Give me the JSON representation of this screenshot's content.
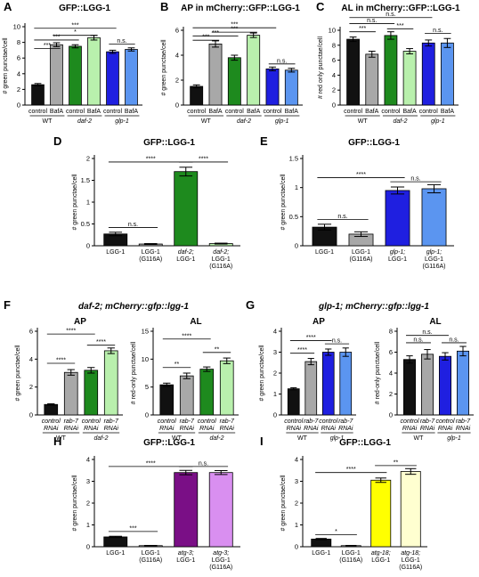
{
  "colors": {
    "black": "#111111",
    "grey": "#a8a8a8",
    "dkgreen": "#1e8a1e",
    "ltgreen": "#b9f0ad",
    "blue": "#1f1fe0",
    "ltblue": "#5b95f0",
    "purple": "#7a0f86",
    "violet": "#d98ff0",
    "yellow": "#ffff00",
    "cream": "#ffffd0"
  },
  "chart_data": [
    {
      "panel": "A",
      "type": "bar",
      "title": "GFP::LGG-1",
      "ylabel": "# green punctae/cell",
      "ylim": [
        0,
        10
      ],
      "yticks": [
        0,
        2,
        4,
        6,
        8,
        10
      ],
      "categories": [
        "control",
        "BafA",
        "control",
        "BafA",
        "control",
        "BafA"
      ],
      "values": [
        2.6,
        7.7,
        7.5,
        8.6,
        6.8,
        7.1
      ],
      "errors": [
        0.15,
        0.25,
        0.2,
        0.3,
        0.2,
        0.2
      ],
      "colors": [
        "black",
        "grey",
        "dkgreen",
        "ltgreen",
        "blue",
        "ltblue"
      ],
      "groups": [
        {
          "label": "WT",
          "italic": false,
          "from": 0,
          "to": 1
        },
        {
          "label": "daf-2",
          "italic": true,
          "from": 2,
          "to": 3
        },
        {
          "label": "glp-1",
          "italic": true,
          "from": 4,
          "to": 5
        }
      ],
      "significance": [
        {
          "from": 0,
          "to": 4,
          "label": "***",
          "y": 9.8
        },
        {
          "from": 1,
          "to": 3,
          "label": "*",
          "y": 8.9
        },
        {
          "from": 0,
          "to": 2,
          "label": "***",
          "y": 8.3
        },
        {
          "from": 0,
          "to": 1,
          "label": "***",
          "y": 7.2
        },
        {
          "from": 4,
          "to": 5,
          "label": "n.s.",
          "y": 7.8
        }
      ]
    },
    {
      "panel": "B",
      "type": "bar",
      "title": "AP in mCherry::GFP::LGG-1",
      "ylabel": "# green punctae/cell",
      "ylim": [
        0,
        6
      ],
      "yticks": [
        0,
        2,
        4,
        6
      ],
      "categories": [
        "control",
        "BafA",
        "control",
        "BafA",
        "control",
        "BafA"
      ],
      "values": [
        1.5,
        4.9,
        3.8,
        5.6,
        2.9,
        2.8
      ],
      "errors": [
        0.12,
        0.25,
        0.2,
        0.18,
        0.15,
        0.15
      ],
      "colors": [
        "black",
        "grey",
        "dkgreen",
        "ltgreen",
        "blue",
        "ltblue"
      ],
      "groups": [
        {
          "label": "WT",
          "italic": false,
          "from": 0,
          "to": 1
        },
        {
          "label": "daf-2",
          "italic": true,
          "from": 2,
          "to": 3
        },
        {
          "label": "glp-1",
          "italic": true,
          "from": 4,
          "to": 5
        }
      ],
      "significance": [
        {
          "from": 0,
          "to": 4,
          "label": "***",
          "y": 6.2
        },
        {
          "from": 0,
          "to": 2,
          "label": "***",
          "y": 5.55
        },
        {
          "from": 1,
          "to": 3,
          "label": "***",
          "y": 5.85
        },
        {
          "from": 0,
          "to": 1,
          "label": "***",
          "y": 5.2
        },
        {
          "from": 4,
          "to": 5,
          "label": "n.s.",
          "y": 3.3
        }
      ]
    },
    {
      "panel": "C",
      "type": "bar",
      "title": "AL in mCherry::GFP::LGG-1",
      "ylabel": "# red only punctae/cell",
      "ylim": [
        0,
        10
      ],
      "yticks": [
        0,
        2,
        4,
        6,
        8,
        10
      ],
      "categories": [
        "control",
        "BafA",
        "control",
        "BafA",
        "control",
        "BafA"
      ],
      "values": [
        8.8,
        6.8,
        9.3,
        7.2,
        8.3,
        8.3
      ],
      "errors": [
        0.3,
        0.4,
        0.5,
        0.35,
        0.4,
        0.6
      ],
      "colors": [
        "black",
        "grey",
        "dkgreen",
        "ltgreen",
        "blue",
        "ltblue"
      ],
      "groups": [
        {
          "label": "WT",
          "italic": false,
          "from": 0,
          "to": 1
        },
        {
          "label": "daf-2",
          "italic": true,
          "from": 2,
          "to": 3
        },
        {
          "label": "glp-1",
          "italic": true,
          "from": 4,
          "to": 5
        }
      ],
      "significance": [
        {
          "from": 0,
          "to": 4,
          "label": "n.s.",
          "y": 11.7
        },
        {
          "from": 0,
          "to": 2,
          "label": "n.s.",
          "y": 10.9
        },
        {
          "from": 0,
          "to": 1,
          "label": "***",
          "y": 9.8
        },
        {
          "from": 2,
          "to": 3,
          "label": "***",
          "y": 10.2
        },
        {
          "from": 4,
          "to": 5,
          "label": "n.s.",
          "y": 9.6
        }
      ]
    },
    {
      "panel": "D",
      "type": "bar",
      "title": "GFP::LGG-1",
      "ylabel": "# green punctae/cell",
      "ylim": [
        0,
        2.0
      ],
      "yticks": [
        0,
        0.5,
        1.0,
        1.5,
        2.0
      ],
      "categories": [
        [
          "LGG-1"
        ],
        [
          "LGG-1",
          "(G116A)"
        ],
        [
          "daf-2;",
          "LGG-1"
        ],
        [
          "daf-2;",
          "LGG-1",
          "(G116A)"
        ]
      ],
      "italic_first": [
        false,
        false,
        true,
        true
      ],
      "values": [
        0.27,
        0.04,
        1.7,
        0.05
      ],
      "errors": [
        0.04,
        0.01,
        0.1,
        0.01
      ],
      "colors": [
        "black",
        "grey",
        "dkgreen",
        "ltgreen"
      ],
      "significance": [
        {
          "from": 0,
          "to": 2,
          "label": "****",
          "y": 1.92
        },
        {
          "from": 2,
          "to": 3,
          "label": "****",
          "y": 1.92
        },
        {
          "from": 0,
          "to": 1,
          "label": "n.s.",
          "y": 0.42
        }
      ]
    },
    {
      "panel": "E",
      "type": "bar",
      "title": "GFP::LGG-1",
      "ylabel": "# green punctae/cell",
      "ylim": [
        0,
        1.5
      ],
      "yticks": [
        0,
        0.5,
        1.0,
        1.5
      ],
      "categories": [
        [
          "LGG-1"
        ],
        [
          "LGG-1",
          "(G116A)"
        ],
        [
          "glp-1;",
          "LGG-1"
        ],
        [
          "glp-1;",
          "LGG-1",
          "(G116A)"
        ]
      ],
      "italic_first": [
        false,
        false,
        true,
        true
      ],
      "values": [
        0.32,
        0.2,
        0.95,
        0.98
      ],
      "errors": [
        0.05,
        0.04,
        0.06,
        0.07
      ],
      "colors": [
        "black",
        "grey",
        "blue",
        "ltblue"
      ],
      "significance": [
        {
          "from": 0,
          "to": 2,
          "label": "****",
          "y": 1.17
        },
        {
          "from": 2,
          "to": 3,
          "label": "n.s.",
          "y": 1.1
        },
        {
          "from": 0,
          "to": 1,
          "label": "n.s.",
          "y": 0.45
        }
      ]
    },
    {
      "panel": "F",
      "type": "bar",
      "title": "AP",
      "ylabel": "# green punctae/cell",
      "ylim": [
        0,
        6
      ],
      "yticks": [
        0,
        2,
        4,
        6
      ],
      "categories": [
        [
          "control",
          "RNAi"
        ],
        [
          "rab-7",
          "RNAi"
        ],
        [
          "control",
          "RNAi"
        ],
        [
          "rab-7",
          "RNAi"
        ]
      ],
      "italic_all": true,
      "values": [
        0.75,
        3.05,
        3.2,
        4.6
      ],
      "errors": [
        0.05,
        0.2,
        0.2,
        0.2
      ],
      "colors": [
        "black",
        "grey",
        "dkgreen",
        "ltgreen"
      ],
      "groups": [
        {
          "label": "WT",
          "italic": false,
          "from": 0,
          "to": 1
        },
        {
          "label": "daf-2",
          "italic": true,
          "from": 2,
          "to": 3
        }
      ],
      "significance": [
        {
          "from": 0,
          "to": 2,
          "label": "****",
          "y": 5.8
        },
        {
          "from": 2,
          "to": 3,
          "label": "****",
          "y": 5.0
        },
        {
          "from": 0,
          "to": 1,
          "label": "****",
          "y": 3.7
        }
      ]
    },
    {
      "panel": "F2",
      "type": "bar",
      "title": "AL",
      "ylabel": "# red-only punctae/cell",
      "ylim": [
        0,
        15
      ],
      "yticks": [
        0,
        5,
        10,
        15
      ],
      "categories": [
        [
          "control",
          "RNAi"
        ],
        [
          "rab-7",
          "RNAi"
        ],
        [
          "control",
          "RNAi"
        ],
        [
          "rab-7",
          "RNAi"
        ]
      ],
      "italic_all": true,
      "values": [
        5.4,
        7.0,
        8.2,
        9.7
      ],
      "errors": [
        0.3,
        0.5,
        0.4,
        0.5
      ],
      "colors": [
        "black",
        "grey",
        "dkgreen",
        "ltgreen"
      ],
      "groups": [
        {
          "label": "WT",
          "italic": false,
          "from": 0,
          "to": 1
        },
        {
          "label": "daf-2",
          "italic": true,
          "from": 2,
          "to": 3
        }
      ],
      "significance": [
        {
          "from": 0,
          "to": 2,
          "label": "****",
          "y": 13.6
        },
        {
          "from": 2,
          "to": 3,
          "label": "**",
          "y": 11.2
        },
        {
          "from": 0,
          "to": 1,
          "label": "**",
          "y": 8.5
        }
      ]
    },
    {
      "panel": "G",
      "type": "bar",
      "title": "AP",
      "ylabel": "# green punctae/cell",
      "ylim": [
        0,
        4
      ],
      "yticks": [
        0,
        1,
        2,
        3,
        4
      ],
      "categories": [
        [
          "control",
          "RNAi"
        ],
        [
          "rab-7",
          "RNAi"
        ],
        [
          "control",
          "RNAi"
        ],
        [
          "rab-7",
          "RNAi"
        ]
      ],
      "italic_all": true,
      "values": [
        1.25,
        2.55,
        3.0,
        3.0
      ],
      "errors": [
        0.05,
        0.15,
        0.15,
        0.2
      ],
      "colors": [
        "black",
        "grey",
        "blue",
        "ltblue"
      ],
      "groups": [
        {
          "label": "WT",
          "italic": false,
          "from": 0,
          "to": 1
        },
        {
          "label": "glp-1",
          "italic": true,
          "from": 2,
          "to": 3
        }
      ],
      "significance": [
        {
          "from": 0,
          "to": 2,
          "label": "****",
          "y": 3.55
        },
        {
          "from": 2,
          "to": 3,
          "label": "n.s.",
          "y": 3.4
        },
        {
          "from": 0,
          "to": 1,
          "label": "****",
          "y": 2.95
        }
      ]
    },
    {
      "panel": "G2",
      "type": "bar",
      "title": "AL",
      "ylabel": "# red-only punctae/cell",
      "ylim": [
        0,
        8
      ],
      "yticks": [
        0,
        2,
        4,
        6,
        8
      ],
      "categories": [
        [
          "control",
          "RNAi"
        ],
        [
          "rab-7",
          "RNAi"
        ],
        [
          "control",
          "RNAi"
        ],
        [
          "rab-7",
          "RNAi"
        ]
      ],
      "italic_all": true,
      "values": [
        5.3,
        5.8,
        5.6,
        6.1
      ],
      "errors": [
        0.35,
        0.45,
        0.35,
        0.45
      ],
      "colors": [
        "black",
        "grey",
        "blue",
        "ltblue"
      ],
      "groups": [
        {
          "label": "WT",
          "italic": false,
          "from": 0,
          "to": 1
        },
        {
          "label": "glp-1",
          "italic": true,
          "from": 2,
          "to": 3
        }
      ],
      "significance": [
        {
          "from": 0,
          "to": 2,
          "label": "n.s.",
          "y": 7.6
        },
        {
          "from": 0,
          "to": 1,
          "label": "n.s.",
          "y": 6.9
        },
        {
          "from": 2,
          "to": 3,
          "label": "n.s.",
          "y": 6.9
        }
      ]
    },
    {
      "panel": "H",
      "type": "bar",
      "title": "GFP::LGG-1",
      "ylabel": "# green punctae/cell",
      "ylim": [
        0,
        4
      ],
      "yticks": [
        0,
        1,
        2,
        3,
        4
      ],
      "categories": [
        [
          "LGG-1"
        ],
        [
          "LGG-1",
          "(G116A)"
        ],
        [
          "atg-3;",
          "LGG-1"
        ],
        [
          "atg-3;",
          "LGG-1",
          "(G116A)"
        ]
      ],
      "italic_first": [
        false,
        false,
        true,
        true
      ],
      "values": [
        0.45,
        0.05,
        3.4,
        3.4
      ],
      "errors": [
        0.03,
        0.01,
        0.1,
        0.09
      ],
      "colors": [
        "black",
        "grey",
        "purple",
        "violet"
      ],
      "significance": [
        {
          "from": 0,
          "to": 2,
          "label": "****",
          "y": 3.68
        },
        {
          "from": 2,
          "to": 3,
          "label": "n.s.",
          "y": 3.68
        },
        {
          "from": 0,
          "to": 1,
          "label": "***",
          "y": 0.7
        }
      ]
    },
    {
      "panel": "I",
      "type": "bar",
      "title": "GFP::LGG-1",
      "ylabel": "# green punctae/cell",
      "ylim": [
        0,
        4
      ],
      "yticks": [
        0,
        1,
        2,
        3,
        4
      ],
      "categories": [
        [
          "LGG-1"
        ],
        [
          "LGG-1",
          "(G116A)"
        ],
        [
          "atg-18;",
          "LGG-1"
        ],
        [
          "atg-18;",
          "LGG-1",
          "(G116A)"
        ]
      ],
      "italic_first": [
        false,
        false,
        true,
        true
      ],
      "values": [
        0.35,
        0.05,
        3.05,
        3.45
      ],
      "errors": [
        0.03,
        0.01,
        0.1,
        0.13
      ],
      "colors": [
        "black",
        "grey",
        "yellow",
        "cream"
      ],
      "significance": [
        {
          "from": 0,
          "to": 2,
          "label": "****",
          "y": 3.4
        },
        {
          "from": 2,
          "to": 3,
          "label": "**",
          "y": 3.72
        },
        {
          "from": 0,
          "to": 1,
          "label": "*",
          "y": 0.55
        }
      ]
    }
  ],
  "extra_titles": {
    "F": "daf-2; mCherry::gfp::lgg-1",
    "G": "glp-1; mCherry::gfp::lgg-1"
  },
  "panel_letters": [
    "A",
    "B",
    "C",
    "D",
    "E",
    "F",
    "G",
    "H",
    "I"
  ]
}
